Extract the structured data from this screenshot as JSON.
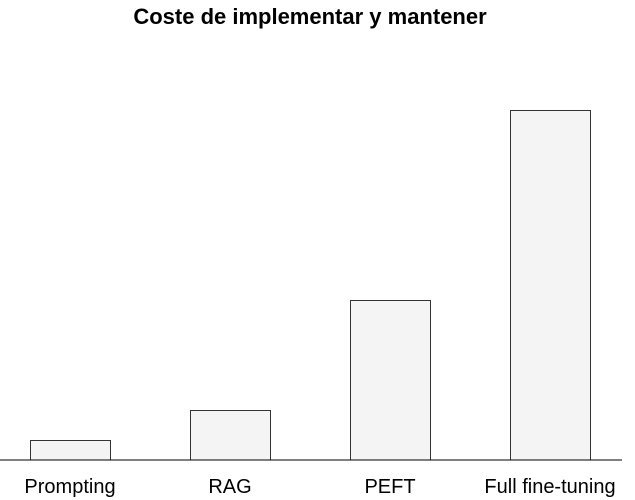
{
  "chart_data": {
    "type": "bar",
    "title": "Coste de implementar y mantener",
    "xlabel": "",
    "ylabel": "",
    "categories": [
      "Prompting",
      "RAG",
      "PEFT",
      "Full fine-tuning"
    ],
    "values": [
      2,
      5,
      16,
      35
    ],
    "ylim": [
      0,
      35
    ],
    "grid": false,
    "legend": "none",
    "colors": {
      "bar_fill": "#f4f4f4",
      "bar_stroke": "#333333",
      "axis": "#000000"
    }
  }
}
